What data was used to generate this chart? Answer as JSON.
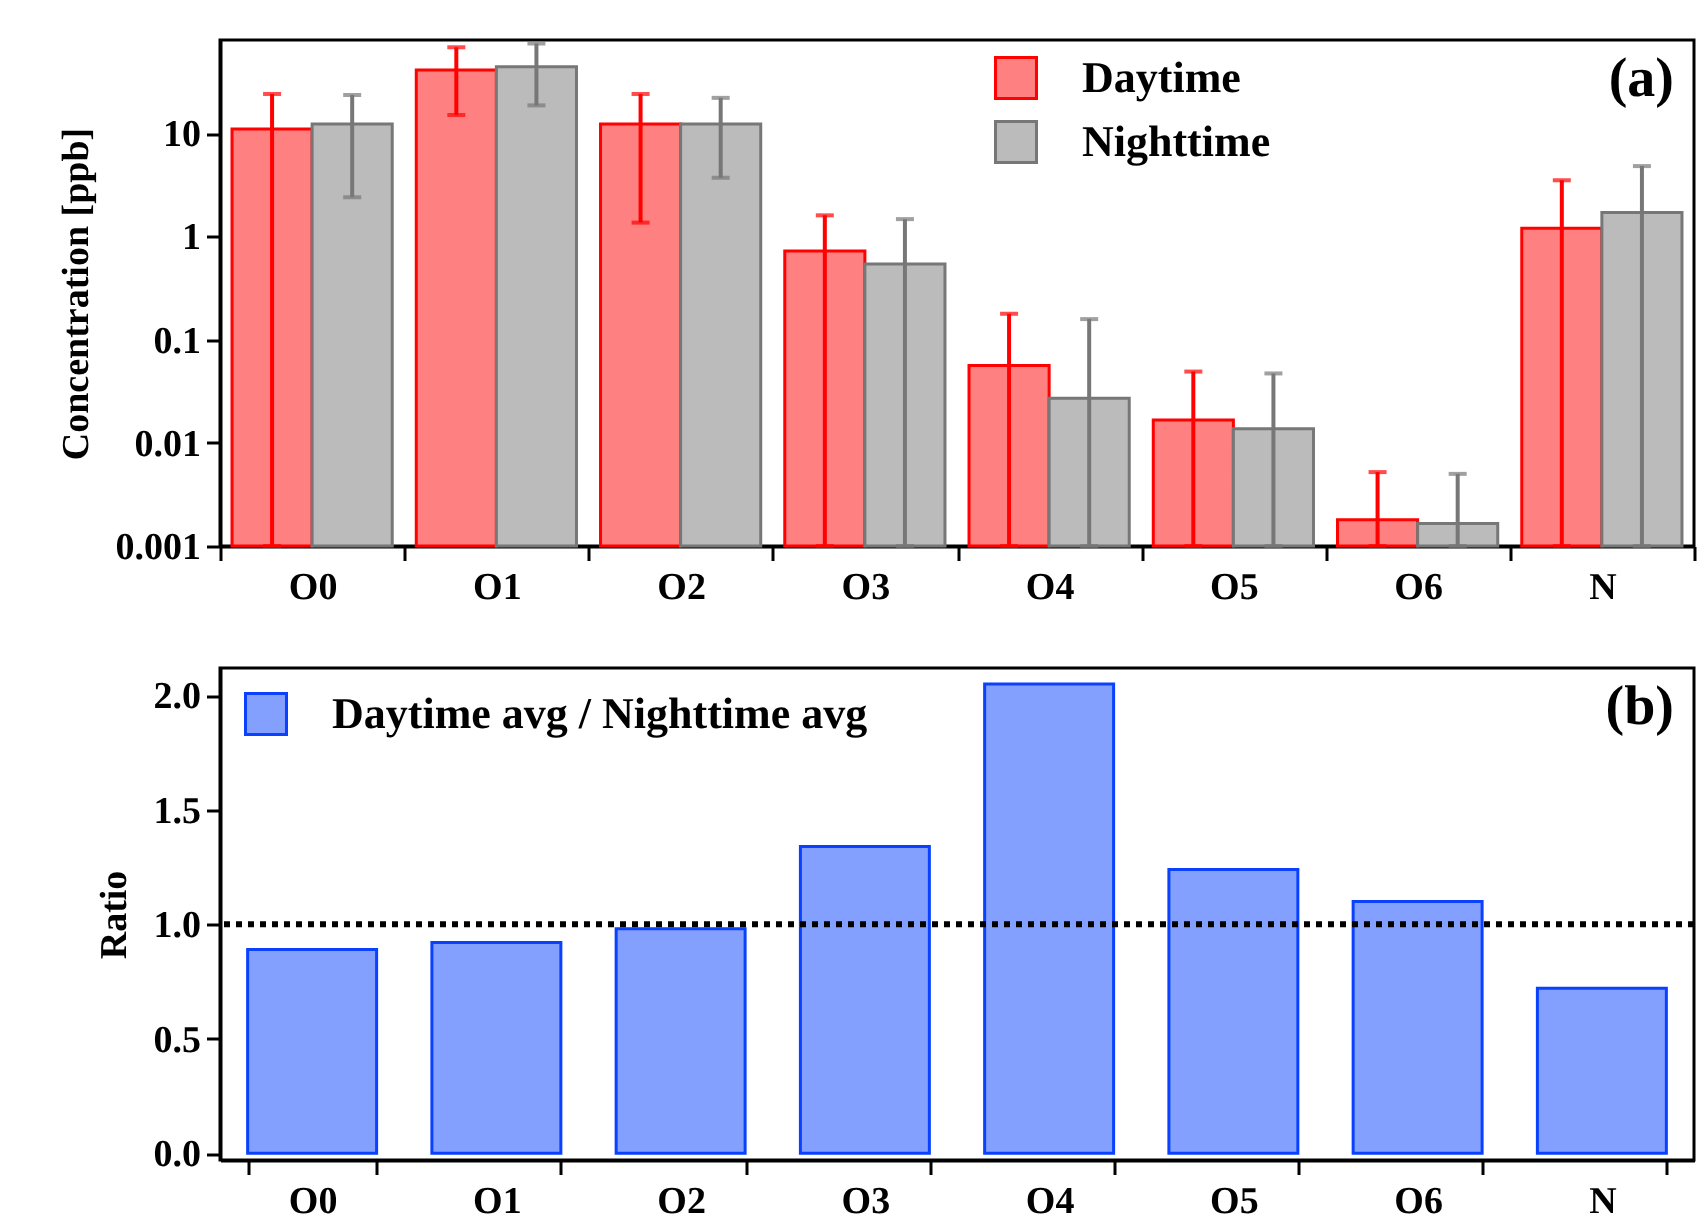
{
  "chart_data": [
    {
      "type": "bar",
      "ylabel": "Concentration [ppb]",
      "categories": [
        "O0",
        "O1",
        "O2",
        "O3",
        "O4",
        "O5",
        "O6",
        "N"
      ],
      "log": "y",
      "ylim": [
        0.001,
        80
      ],
      "yticks": [
        {
          "value": 0.001,
          "label": "0.001"
        },
        {
          "value": 0.01,
          "label": "0.01"
        },
        {
          "value": 0.1,
          "label": "0.1"
        },
        1,
        10
      ],
      "legend": "top right",
      "annotations": [
        "(a)"
      ],
      "series": [
        {
          "name": "Daytime",
          "color": "#ff8080",
          "values": [
            11,
            41,
            12.3,
            0.72,
            0.056,
            0.0166,
            0.0018,
            1.2
          ],
          "errors": [
            [
              0.001,
              24
            ],
            [
              15,
              68
            ],
            [
              1.36,
              24
            ],
            [
              0.001,
              1.6
            ],
            [
              0.001,
              0.178
            ],
            [
              0.001,
              0.049
            ],
            [
              0.001,
              0.0052
            ],
            [
              0.001,
              3.5
            ]
          ]
        },
        {
          "name": "Nighttime",
          "color": "#bbbbbb",
          "values": [
            12.3,
            44,
            12.3,
            0.54,
            0.027,
            0.0137,
            0.00165,
            1.7
          ],
          "errors": [
            [
              2.4,
              23.5
            ],
            [
              18.6,
              74
            ],
            [
              3.7,
              22
            ],
            [
              0.001,
              1.47
            ],
            [
              0.001,
              0.158
            ],
            [
              0.001,
              0.047
            ],
            [
              0.001,
              0.005
            ],
            [
              0.001,
              4.8
            ]
          ]
        }
      ]
    },
    {
      "type": "bar",
      "ylabel": "Ratio",
      "categories": [
        "O0",
        "O1",
        "O2",
        "O3",
        "O4",
        "O5",
        "O6",
        "N"
      ],
      "ylim": [
        -0.03,
        2.12
      ],
      "yticks": [
        {
          "value": 0,
          "label": "0.0"
        },
        0.5,
        {
          "value": 1,
          "label": "1.0"
        },
        1.5,
        {
          "value": 2,
          "label": "2.0"
        }
      ],
      "legend": "top left",
      "annotations": [
        "(b)"
      ],
      "ref_lines": [
        {
          "axis": "y",
          "value": 1,
          "color": "#000000",
          "line_style": "dotted"
        }
      ],
      "series": [
        {
          "name": "Daytime avg / Nighttime avg",
          "color": "#84a0ff",
          "values": [
            0.89,
            0.92,
            0.98,
            1.34,
            2.05,
            1.24,
            1.1,
            0.72
          ]
        }
      ]
    }
  ]
}
